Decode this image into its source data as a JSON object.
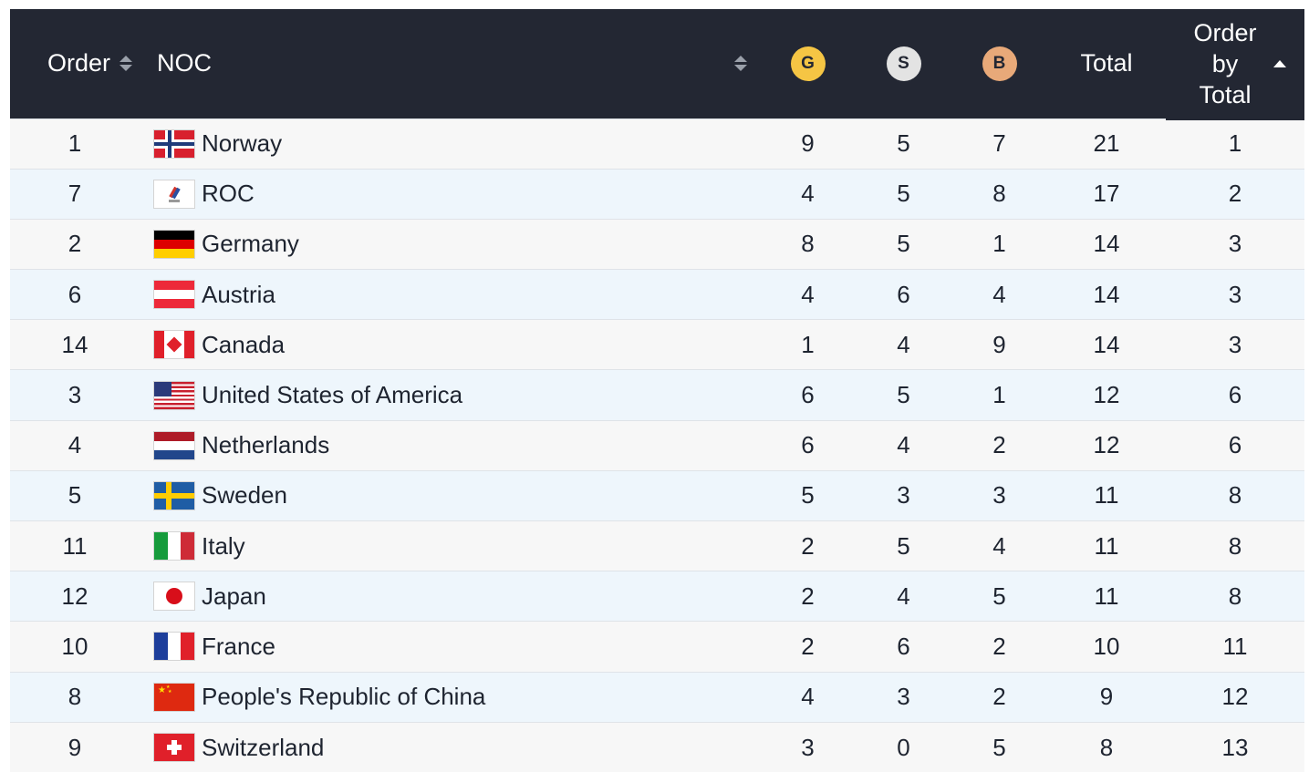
{
  "header": {
    "order": "Order",
    "noc": "NOC",
    "gold": "G",
    "silver": "S",
    "bronze": "B",
    "total": "Total",
    "order_by_total": [
      "Order",
      "by",
      "Total"
    ]
  },
  "colors": {
    "header_bg": "#232733",
    "gold": "#f5c544",
    "silver": "#e3e3e3",
    "bronze": "#e8a979",
    "row_odd": "#f7f7f7",
    "row_even": "#eef6fc"
  },
  "rows": [
    {
      "order": "1",
      "noc": "Norway",
      "flag": "norway-flag-icon",
      "g": "9",
      "s": "5",
      "b": "7",
      "total": "21",
      "rank": "1"
    },
    {
      "order": "7",
      "noc": "ROC",
      "flag": "roc-flag-icon",
      "g": "4",
      "s": "5",
      "b": "8",
      "total": "17",
      "rank": "2"
    },
    {
      "order": "2",
      "noc": "Germany",
      "flag": "germany-flag-icon",
      "g": "8",
      "s": "5",
      "b": "1",
      "total": "14",
      "rank": "3"
    },
    {
      "order": "6",
      "noc": "Austria",
      "flag": "austria-flag-icon",
      "g": "4",
      "s": "6",
      "b": "4",
      "total": "14",
      "rank": "3"
    },
    {
      "order": "14",
      "noc": "Canada",
      "flag": "canada-flag-icon",
      "g": "1",
      "s": "4",
      "b": "9",
      "total": "14",
      "rank": "3"
    },
    {
      "order": "3",
      "noc": "United States of America",
      "flag": "usa-flag-icon",
      "g": "6",
      "s": "5",
      "b": "1",
      "total": "12",
      "rank": "6"
    },
    {
      "order": "4",
      "noc": "Netherlands",
      "flag": "netherlands-flag-icon",
      "g": "6",
      "s": "4",
      "b": "2",
      "total": "12",
      "rank": "6"
    },
    {
      "order": "5",
      "noc": "Sweden",
      "flag": "sweden-flag-icon",
      "g": "5",
      "s": "3",
      "b": "3",
      "total": "11",
      "rank": "8"
    },
    {
      "order": "11",
      "noc": "Italy",
      "flag": "italy-flag-icon",
      "g": "2",
      "s": "5",
      "b": "4",
      "total": "11",
      "rank": "8"
    },
    {
      "order": "12",
      "noc": "Japan",
      "flag": "japan-flag-icon",
      "g": "2",
      "s": "4",
      "b": "5",
      "total": "11",
      "rank": "8"
    },
    {
      "order": "10",
      "noc": "France",
      "flag": "france-flag-icon",
      "g": "2",
      "s": "6",
      "b": "2",
      "total": "10",
      "rank": "11"
    },
    {
      "order": "8",
      "noc": "People's Republic of China",
      "flag": "china-flag-icon",
      "g": "4",
      "s": "3",
      "b": "2",
      "total": "9",
      "rank": "12"
    },
    {
      "order": "9",
      "noc": "Switzerland",
      "flag": "switzerland-flag-icon",
      "g": "3",
      "s": "0",
      "b": "5",
      "total": "8",
      "rank": "13"
    }
  ]
}
